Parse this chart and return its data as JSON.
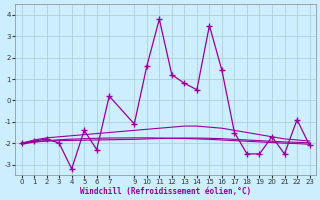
{
  "title": "",
  "xlabel": "Windchill (Refroidissement éolien,°C)",
  "bg_color": "#cceeff",
  "line_color": "#990099",
  "grid_color": "#aacccc",
  "ylim": [
    -3.5,
    4.5
  ],
  "xlim": [
    -0.5,
    23.5
  ],
  "yticks": [
    -3,
    -2,
    -1,
    0,
    1,
    2,
    3,
    4
  ],
  "xticks": [
    0,
    1,
    2,
    3,
    4,
    5,
    6,
    7,
    9,
    10,
    11,
    12,
    13,
    14,
    15,
    16,
    17,
    18,
    19,
    20,
    21,
    22,
    23
  ],
  "x": [
    0,
    1,
    2,
    3,
    4,
    5,
    6,
    7,
    9,
    10,
    11,
    12,
    13,
    14,
    15,
    16,
    17,
    18,
    19,
    20,
    21,
    22,
    23
  ],
  "y_main": [
    -2.0,
    -1.9,
    -1.8,
    -2.0,
    -3.2,
    -1.4,
    -2.3,
    0.2,
    -1.1,
    1.6,
    3.8,
    1.2,
    0.8,
    0.5,
    3.5,
    1.4,
    -1.5,
    -2.5,
    -2.5,
    -1.7,
    -2.5,
    -0.9,
    -2.1
  ],
  "y_smooth1": [
    -2.0,
    -1.85,
    -1.75,
    -1.7,
    -1.65,
    -1.6,
    -1.55,
    -1.5,
    -1.4,
    -1.35,
    -1.3,
    -1.25,
    -1.2,
    -1.2,
    -1.25,
    -1.3,
    -1.4,
    -1.5,
    -1.6,
    -1.7,
    -1.8,
    -1.85,
    -1.9
  ],
  "y_smooth2": [
    -2.05,
    -1.95,
    -1.9,
    -1.88,
    -1.87,
    -1.86,
    -1.85,
    -1.84,
    -1.82,
    -1.8,
    -1.78,
    -1.77,
    -1.76,
    -1.76,
    -1.77,
    -1.79,
    -1.82,
    -1.85,
    -1.88,
    -1.91,
    -1.94,
    -1.96,
    -1.98
  ],
  "y_smooth3": [
    -2.0,
    -1.93,
    -1.88,
    -1.84,
    -1.81,
    -1.79,
    -1.77,
    -1.76,
    -1.75,
    -1.75,
    -1.76,
    -1.77,
    -1.78,
    -1.8,
    -1.82,
    -1.85,
    -1.88,
    -1.91,
    -1.94,
    -1.97,
    -2.0,
    -2.02,
    -2.05
  ]
}
